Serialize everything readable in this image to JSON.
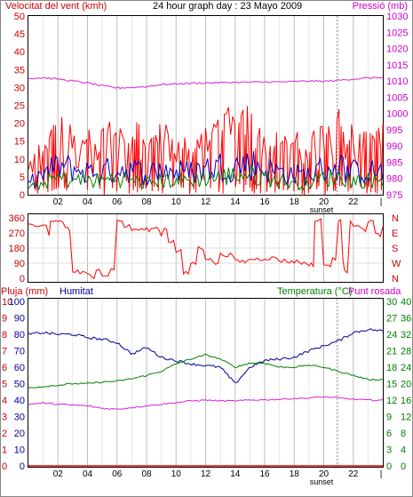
{
  "chart_data": [
    {
      "type": "line",
      "panel": "wind-pressure",
      "title": "24 hour graph day : 23 Mayo 2009",
      "left_axis_label": "Velocitat del vent (kmh)",
      "right_axis_label": "Pressió (mb)",
      "y_left_ticks": [
        "0",
        "5",
        "10",
        "15",
        "20",
        "25",
        "30",
        "35",
        "40",
        "45",
        "50"
      ],
      "y_left_range": [
        0,
        50
      ],
      "y_right_ticks": [
        "975",
        "980",
        "985",
        "990",
        "995",
        "1000",
        "1005",
        "1010",
        "1015",
        "1020",
        "1025",
        "1030"
      ],
      "y_right_range": [
        975,
        1030
      ],
      "x_ticks": [
        "02",
        "04",
        "06",
        "08",
        "10",
        "12",
        "14",
        "16",
        "18",
        "20",
        "22"
      ],
      "x_range_hours": [
        0,
        24
      ],
      "sunset_label": "sunset",
      "sunset_hour": 20.9,
      "grid": true,
      "series": [
        {
          "name": "",
          "color": "#ff0000",
          "x_hours": [
            0,
            1,
            2,
            3,
            4,
            5,
            6,
            7,
            8,
            9,
            10,
            11,
            12,
            13,
            14,
            15,
            16,
            17,
            18,
            19,
            20,
            21,
            22,
            23,
            24
          ],
          "values": [
            8,
            14,
            19,
            17,
            16,
            16,
            19,
            18,
            15,
            17,
            15,
            15,
            17,
            20,
            21,
            22,
            19,
            15,
            15,
            14,
            18,
            21,
            17,
            16,
            17
          ]
        },
        {
          "name": "",
          "color": "#0000cc",
          "x_hours": [
            0,
            1,
            2,
            3,
            4,
            5,
            6,
            7,
            8,
            9,
            10,
            11,
            12,
            13,
            14,
            15,
            16,
            17,
            18,
            19,
            20,
            21,
            22,
            23,
            24
          ],
          "values": [
            4,
            7,
            10,
            9,
            8,
            8,
            9,
            9,
            7,
            9,
            8,
            8,
            9,
            10,
            10,
            11,
            9,
            8,
            7,
            7,
            9,
            10,
            8,
            8,
            8
          ]
        },
        {
          "name": "",
          "color": "#008000",
          "x_hours": [
            0,
            1,
            2,
            3,
            4,
            5,
            6,
            7,
            8,
            9,
            10,
            11,
            12,
            13,
            14,
            15,
            16,
            17,
            18,
            19,
            20,
            21,
            22,
            23,
            24
          ],
          "values": [
            2,
            4,
            6,
            5,
            5,
            5,
            6,
            5,
            4,
            5,
            5,
            5,
            6,
            6,
            7,
            7,
            6,
            5,
            4,
            4,
            6,
            6,
            5,
            5,
            5
          ]
        },
        {
          "name": "",
          "color": "#dd22dd",
          "axis": "right",
          "x_hours": [
            0,
            1,
            2,
            3,
            4,
            5,
            6,
            7,
            8,
            9,
            10,
            11,
            12,
            13,
            14,
            15,
            16,
            17,
            18,
            19,
            20,
            21,
            22,
            23,
            24
          ],
          "values": [
            1010.8,
            1011,
            1010.6,
            1010,
            1009.4,
            1008.5,
            1007.9,
            1008,
            1008.3,
            1008.9,
            1009.1,
            1009.3,
            1009.4,
            1009.5,
            1009.6,
            1009.6,
            1009.7,
            1009.7,
            1009.8,
            1010,
            1009.9,
            1010.2,
            1010.6,
            1010.9,
            1011.1
          ]
        }
      ]
    },
    {
      "type": "line",
      "panel": "wind-direction",
      "y_left_ticks": [
        "0",
        "90",
        "180",
        "270",
        "360"
      ],
      "y_left_range": [
        0,
        360
      ],
      "y_right_ticks": [
        "N",
        "W",
        "S",
        "E",
        "N"
      ],
      "x_range_hours": [
        0,
        24
      ],
      "grid": true,
      "series": [
        {
          "name": "",
          "color": "#ff0000",
          "x_hours": [
            0,
            0.5,
            1,
            1.4,
            1.5,
            2,
            2.5,
            2.8,
            3,
            3.5,
            4,
            4.3,
            4.6,
            5,
            5.4,
            5.6,
            6,
            6.5,
            7,
            7.5,
            8,
            8.5,
            9,
            9.2,
            9.5,
            10,
            10.5,
            11,
            11.5,
            12,
            12.5,
            13,
            14,
            15,
            16,
            17,
            17.5,
            18,
            18.5,
            19,
            19.3,
            19.4,
            19.6,
            19.8,
            20,
            20.3,
            20.6,
            21,
            21.3,
            21.4,
            21.6,
            21.8,
            22,
            22.5,
            23,
            23.5,
            24
          ],
          "values": [
            320,
            300,
            310,
            250,
            340,
            340,
            300,
            280,
            40,
            30,
            20,
            10,
            60,
            20,
            10,
            60,
            340,
            310,
            290,
            290,
            290,
            300,
            250,
            300,
            220,
            160,
            30,
            90,
            180,
            120,
            90,
            140,
            100,
            115,
            120,
            105,
            100,
            100,
            90,
            85,
            60,
            350,
            340,
            360,
            80,
            70,
            120,
            340,
            100,
            60,
            40,
            350,
            320,
            290,
            340,
            260,
            300
          ]
        }
      ]
    },
    {
      "type": "line",
      "panel": "rain-humidity-temperature",
      "left_axis_label": "Pluja (mm)",
      "left_axis_label_2": "Humitat",
      "right_axis_label": "Temperatura (°C)",
      "right_axis_label_2": "Punt rosada",
      "y_rain_ticks": [
        "0",
        "1",
        "2",
        "3",
        "4",
        "5",
        "6",
        "7",
        "8",
        "9",
        "10"
      ],
      "y_rain_range": [
        0,
        10
      ],
      "y_humidity_ticks": [
        "0",
        "10",
        "20",
        "30",
        "40",
        "50",
        "60",
        "70",
        "80",
        "90",
        "100"
      ],
      "y_humidity_range": [
        0,
        100
      ],
      "y_temp_ticks": [
        "0",
        "3",
        "6",
        "9",
        "12",
        "15",
        "18",
        "21",
        "24",
        "27",
        "30"
      ],
      "y_temp_range": [
        0,
        30
      ],
      "y_temp_right_ticks": [
        "0",
        "4",
        "8",
        "12",
        "16",
        "20",
        "24",
        "28",
        "32",
        "36",
        "40"
      ],
      "y_temp_right_range": [
        0,
        40
      ],
      "x_ticks": [
        "02",
        "04",
        "06",
        "08",
        "10",
        "12",
        "14",
        "16",
        "18",
        "20",
        "22"
      ],
      "x_range_hours": [
        0,
        24
      ],
      "sunset_label": "sunset",
      "sunset_hour": 20.9,
      "grid": true,
      "series": [
        {
          "name": "Humitat",
          "color": "#000099",
          "axis": "humidity",
          "x_hours": [
            0,
            1,
            2,
            3,
            4,
            5,
            6,
            7,
            8,
            9,
            10,
            11,
            12,
            13,
            14,
            15,
            16,
            17,
            18,
            19,
            20,
            21,
            22,
            23,
            24
          ],
          "values": [
            80,
            81,
            80,
            80,
            78,
            77,
            75,
            68,
            72,
            66,
            64,
            62,
            61,
            60,
            50,
            60,
            64,
            65,
            66,
            70,
            73,
            76,
            81,
            83,
            82
          ]
        },
        {
          "name": "",
          "color": "#008000",
          "axis": "temp_right",
          "x_hours": [
            0,
            1,
            2,
            3,
            4,
            5,
            6,
            7,
            8,
            9,
            10,
            11,
            12,
            13,
            14,
            15,
            16,
            17,
            18,
            19,
            20,
            21,
            22,
            23,
            24
          ],
          "values": [
            19,
            19.3,
            19.6,
            20,
            20,
            20.4,
            20.6,
            21.2,
            22,
            23,
            24.8,
            26,
            27,
            26,
            24,
            25,
            25,
            24,
            24,
            24.5,
            24,
            23,
            22,
            21,
            21
          ]
        },
        {
          "name": "",
          "color": "#dd22dd",
          "axis": "temp_right",
          "x_hours": [
            0,
            1,
            2,
            3,
            4,
            5,
            6,
            7,
            8,
            9,
            10,
            11,
            12,
            13,
            14,
            15,
            16,
            17,
            18,
            19,
            20,
            21,
            22,
            23,
            24
          ],
          "values": [
            15,
            15.3,
            15,
            14.8,
            14.6,
            14,
            13.8,
            14.2,
            14.6,
            15,
            15.4,
            15.8,
            16,
            15.8,
            15.8,
            16,
            16.1,
            16.2,
            16.4,
            16.5,
            16.8,
            16.5,
            16.2,
            16,
            16
          ]
        },
        {
          "name": "Pluja (mm)",
          "color": "#ff0000",
          "axis": "rain",
          "x_hours": [
            0,
            24
          ],
          "values": [
            0,
            0
          ]
        }
      ]
    }
  ]
}
